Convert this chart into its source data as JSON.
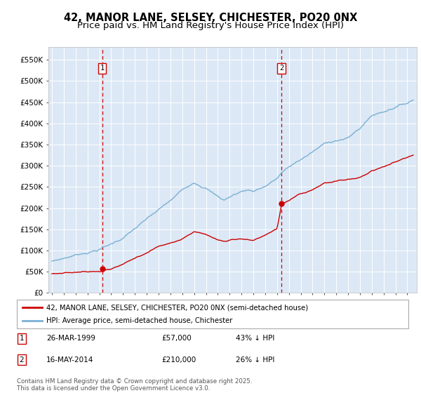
{
  "title": "42, MANOR LANE, SELSEY, CHICHESTER, PO20 0NX",
  "subtitle": "Price paid vs. HM Land Registry's House Price Index (HPI)",
  "title_fontsize": 10.5,
  "subtitle_fontsize": 9.5,
  "plot_bg_color": "#dce8f5",
  "ylabel_values": [
    "£0",
    "£50K",
    "£100K",
    "£150K",
    "£200K",
    "£250K",
    "£300K",
    "£350K",
    "£400K",
    "£450K",
    "£500K",
    "£550K"
  ],
  "ytick_values": [
    0,
    50000,
    100000,
    150000,
    200000,
    250000,
    300000,
    350000,
    400000,
    450000,
    500000,
    550000
  ],
  "ylim": [
    0,
    580000
  ],
  "sale1_date": 1999.24,
  "sale1_price": 57000,
  "sale2_date": 2014.38,
  "sale2_price": 210000,
  "legend1_text": "42, MANOR LANE, SELSEY, CHICHESTER, PO20 0NX (semi-detached house)",
  "legend2_text": "HPI: Average price, semi-detached house, Chichester",
  "line_color_red": "#cc0000",
  "line_color_blue": "#7ab0d4",
  "vline_color": "#cc0000",
  "box_color": "#cc0000",
  "footer": "Contains HM Land Registry data © Crown copyright and database right 2025.\nThis data is licensed under the Open Government Licence v3.0."
}
